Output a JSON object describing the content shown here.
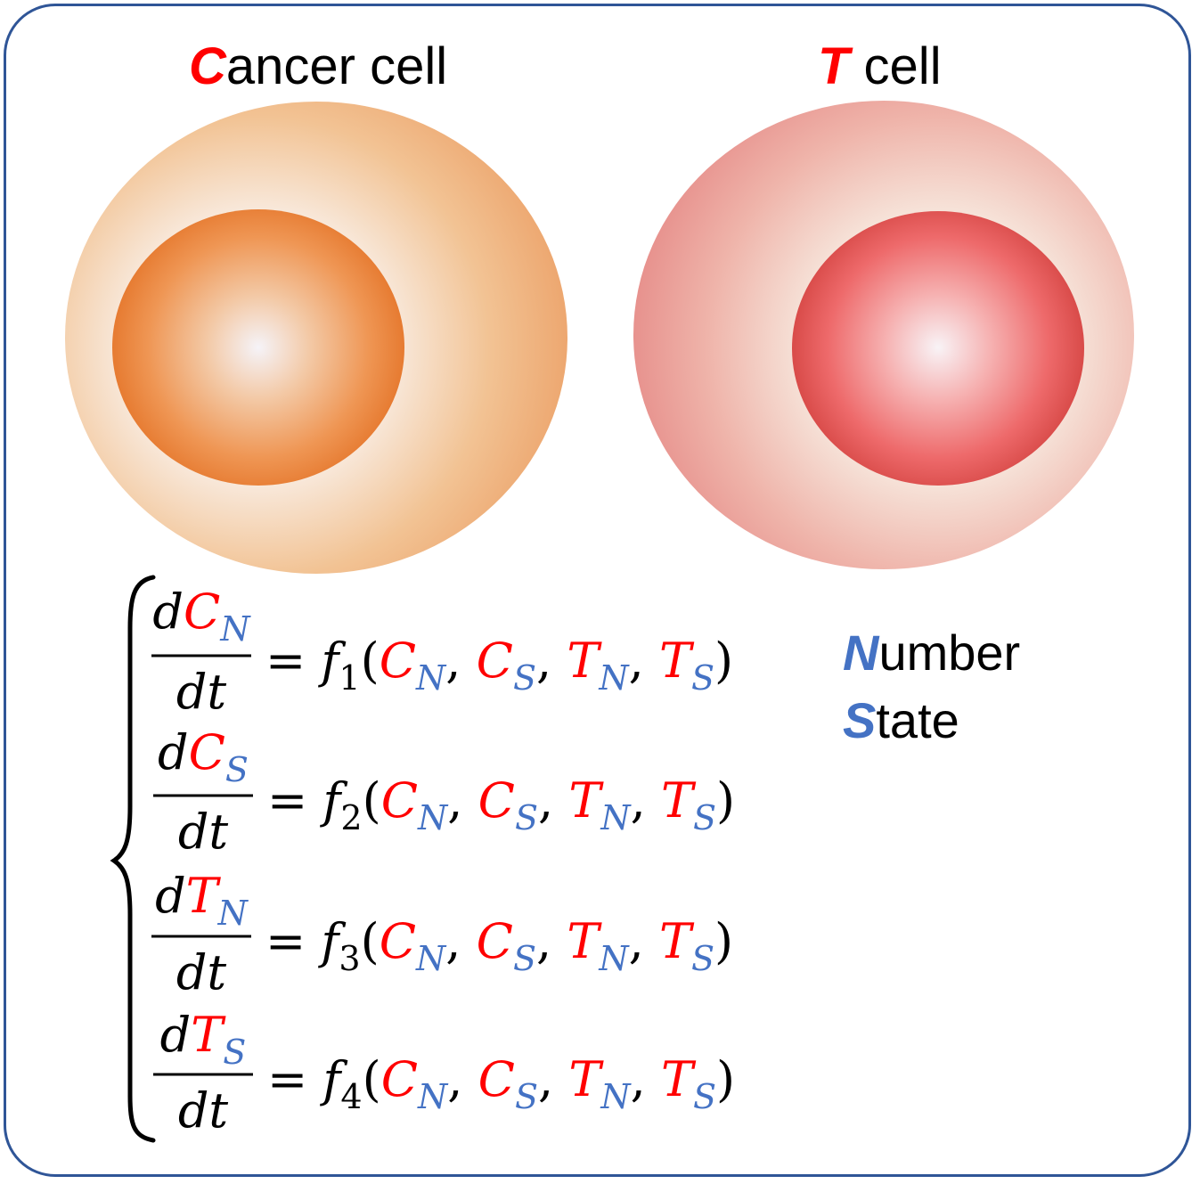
{
  "colors": {
    "border": "#2f5597",
    "red": "#ff0000",
    "blue": "#4472c4",
    "text": "#000000"
  },
  "cancer_cell": {
    "label_initial": "C",
    "label_rest": "ancer cell"
  },
  "t_cell": {
    "label_initial": "T",
    "label_rest": " cell"
  },
  "legend": {
    "number_initial": "N",
    "number_rest": "umber",
    "state_initial": "S",
    "state_rest": "tate"
  },
  "equations": [
    {
      "lhs_var": "C",
      "lhs_sub": "N",
      "denominator": "dt",
      "func": "f",
      "func_sub": "1"
    },
    {
      "lhs_var": "C",
      "lhs_sub": "S",
      "denominator": "dt",
      "func": "f",
      "func_sub": "2"
    },
    {
      "lhs_var": "T",
      "lhs_sub": "N",
      "denominator": "dt",
      "func": "f",
      "func_sub": "3"
    },
    {
      "lhs_var": "T",
      "lhs_sub": "S",
      "denominator": "dt",
      "func": "f",
      "func_sub": "4"
    }
  ],
  "arguments": [
    {
      "var": "C",
      "sub": "N"
    },
    {
      "var": "C",
      "sub": "S"
    },
    {
      "var": "T",
      "sub": "N"
    },
    {
      "var": "T",
      "sub": "S"
    }
  ]
}
